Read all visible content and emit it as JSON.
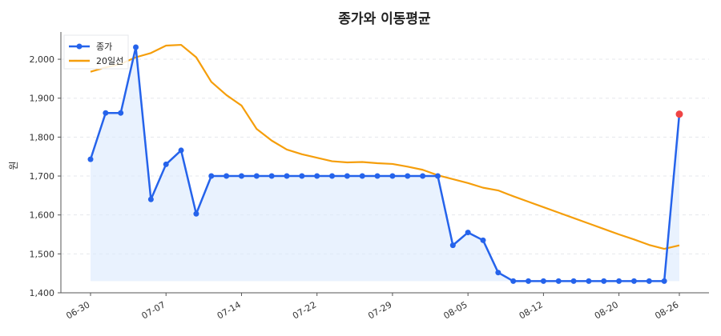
{
  "chart_data": {
    "type": "line",
    "title": "종가와 이동평균",
    "xlabel": "",
    "ylabel": "원",
    "ylim": [
      1400,
      2070
    ],
    "yticks": [
      1400,
      1500,
      1600,
      1700,
      1800,
      1900,
      2000
    ],
    "ytick_labels": [
      "1,400",
      "1,500",
      "1,600",
      "1,700",
      "1,800",
      "1,900",
      "2,000"
    ],
    "x_tick_labels": [
      "06-30",
      "07-07",
      "07-14",
      "07-22",
      "07-29",
      "08-05",
      "08-12",
      "08-20",
      "08-26"
    ],
    "x_tick_index": [
      0,
      5,
      10,
      15,
      20,
      25,
      30,
      35,
      39
    ],
    "x": [
      "06-30",
      "07-01",
      "07-02",
      "07-03",
      "07-04",
      "07-07",
      "07-08",
      "07-09",
      "07-10",
      "07-11",
      "07-14",
      "07-15",
      "07-16",
      "07-17",
      "07-18",
      "07-22",
      "07-23",
      "07-24",
      "07-25",
      "07-28",
      "07-29",
      "07-30",
      "07-31",
      "08-01",
      "08-04",
      "08-05",
      "08-06",
      "08-07",
      "08-08",
      "08-11",
      "08-12",
      "08-13",
      "08-14",
      "08-18",
      "08-19",
      "08-20",
      "08-21",
      "08-22",
      "08-25",
      "08-26"
    ],
    "grid": true,
    "legend": "top-left",
    "series": [
      {
        "name": "종가",
        "color": "#2563eb",
        "fill": true,
        "markers": true,
        "values": [
          1743,
          1862,
          1862,
          2031,
          1640,
          1730,
          1766,
          1603,
          1700,
          1700,
          1700,
          1700,
          1700,
          1700,
          1700,
          1700,
          1700,
          1700,
          1700,
          1700,
          1700,
          1700,
          1700,
          1700,
          1522,
          1555,
          1535,
          1452,
          1430,
          1430,
          1430,
          1430,
          1430,
          1430,
          1430,
          1430,
          1430,
          1430,
          1430,
          1859
        ]
      },
      {
        "name": "20일선",
        "color": "#f59e0b",
        "fill": false,
        "markers": false,
        "values": [
          1968,
          1979,
          1988,
          2005,
          2016,
          2035,
          2037,
          2005,
          1942,
          1908,
          1881,
          1821,
          1791,
          1768,
          1756,
          1747,
          1738,
          1735,
          1736,
          1733,
          1731,
          1724,
          1716,
          1702,
          1692,
          1682,
          1670,
          1663,
          1648,
          1634,
          1620,
          1606,
          1592,
          1578,
          1564,
          1550,
          1537,
          1523,
          1513,
          1522
        ]
      }
    ],
    "last_point_marker_color": "#ef4444"
  }
}
